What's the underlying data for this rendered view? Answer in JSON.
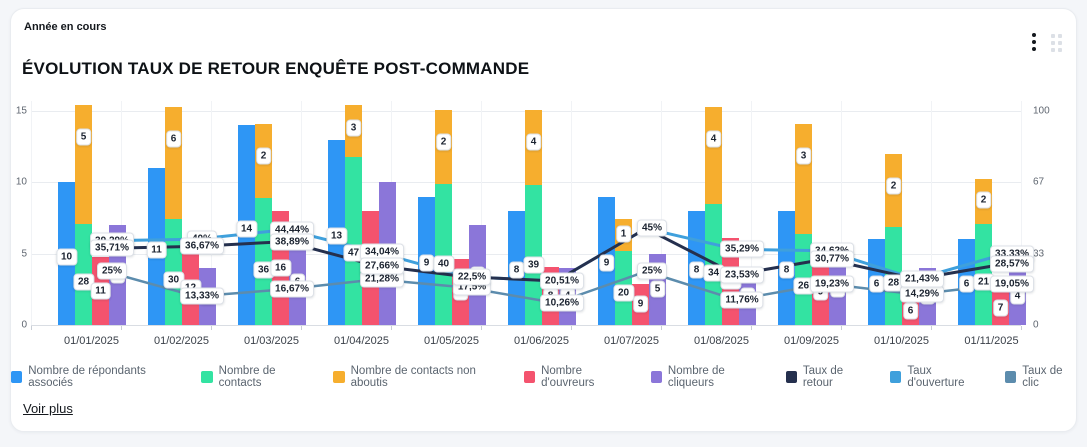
{
  "widget": {
    "period_label": "Année en cours",
    "title": "ÉVOLUTION TAUX DE RETOUR ENQUÊTE POST-COMMANDE",
    "see_more_label": "Voir plus"
  },
  "chart_data": {
    "type": "bar",
    "subtype": "grouped bars with stacked segment + percentage lines on secondary axis",
    "categories": [
      "01/01/2025",
      "01/02/2025",
      "01/03/2025",
      "01/04/2025",
      "01/05/2025",
      "01/06/2025",
      "01/07/2025",
      "01/08/2025",
      "01/09/2025",
      "01/10/2025",
      "01/11/2025"
    ],
    "left_axis": {
      "min": 0,
      "max": 15,
      "ticks": [
        15,
        10,
        5,
        0
      ]
    },
    "right_axis": {
      "min": 0,
      "max": 100,
      "ticks": [
        100,
        67,
        33,
        0
      ]
    },
    "grid": true,
    "legend_position": "bottom",
    "bar_series": [
      {
        "name": "Nombre de répondants associés",
        "color": "#2e96f5",
        "values": [
          10,
          11,
          14,
          13,
          9,
          8,
          9,
          8,
          8,
          6,
          6
        ],
        "display_heights": [
          10,
          11,
          14,
          13,
          9,
          8,
          9,
          8,
          8,
          6,
          6
        ]
      },
      {
        "name": "Nombre de contacts",
        "color": "#33e3a2",
        "values": [
          28,
          30,
          36,
          47,
          40,
          39,
          20,
          34,
          26,
          28,
          21
        ],
        "display_heights": [
          7.05,
          7.4,
          8.9,
          11.8,
          9.9,
          9.8,
          5.2,
          8.5,
          6.4,
          6.9,
          7.05
        ]
      },
      {
        "name": "Nombre de contacts non aboutis",
        "color": "#f6ae2e",
        "stacked_on": "Nombre de contacts",
        "values": [
          5,
          6,
          2,
          3,
          2,
          4,
          1,
          4,
          3,
          2,
          2
        ],
        "display_tops": [
          15.4,
          15.3,
          14.1,
          15.4,
          15.1,
          15.1,
          7.4,
          15.3,
          14.1,
          12.0,
          10.2
        ]
      },
      {
        "name": "Nombre d'ouvreurs",
        "color": "#f4536e",
        "values": [
          11,
          12,
          16,
          16,
          9,
          8,
          9,
          12,
          9,
          6,
          7
        ],
        "display_heights": [
          4.8,
          5.25,
          8.0,
          8.0,
          4.6,
          4.1,
          2.9,
          6.1,
          4.6,
          2.0,
          2.4
        ]
      },
      {
        "name": "Nombre de cliqueurs",
        "color": "#8b76d9",
        "values": [
          7,
          4,
          6,
          10,
          7,
          4,
          5,
          4,
          5,
          4,
          4
        ],
        "display_heights": [
          7,
          4,
          6,
          10,
          7,
          4,
          5,
          4,
          5,
          4,
          4
        ]
      }
    ],
    "line_series": [
      {
        "name": "Taux de retour",
        "color": "#25304e",
        "unit": "%",
        "values": [
          35.71,
          36.67,
          38.89,
          27.66,
          22.5,
          20.51,
          45,
          23.53,
          30.77,
          21.43,
          28.57
        ]
      },
      {
        "name": "Taux d'ouverture",
        "color": "#3fa0dc",
        "unit": "%",
        "values": [
          39.29,
          40,
          44.44,
          34.04,
          22.5,
          20.51,
          45,
          35.29,
          34.62,
          21.43,
          33.33
        ]
      },
      {
        "name": "Taux de clic",
        "color": "#5c8cad",
        "unit": "%",
        "values": [
          25,
          13.33,
          16.67,
          21.28,
          17.5,
          10.26,
          25,
          11.76,
          19.23,
          14.29,
          19.05
        ]
      }
    ]
  }
}
